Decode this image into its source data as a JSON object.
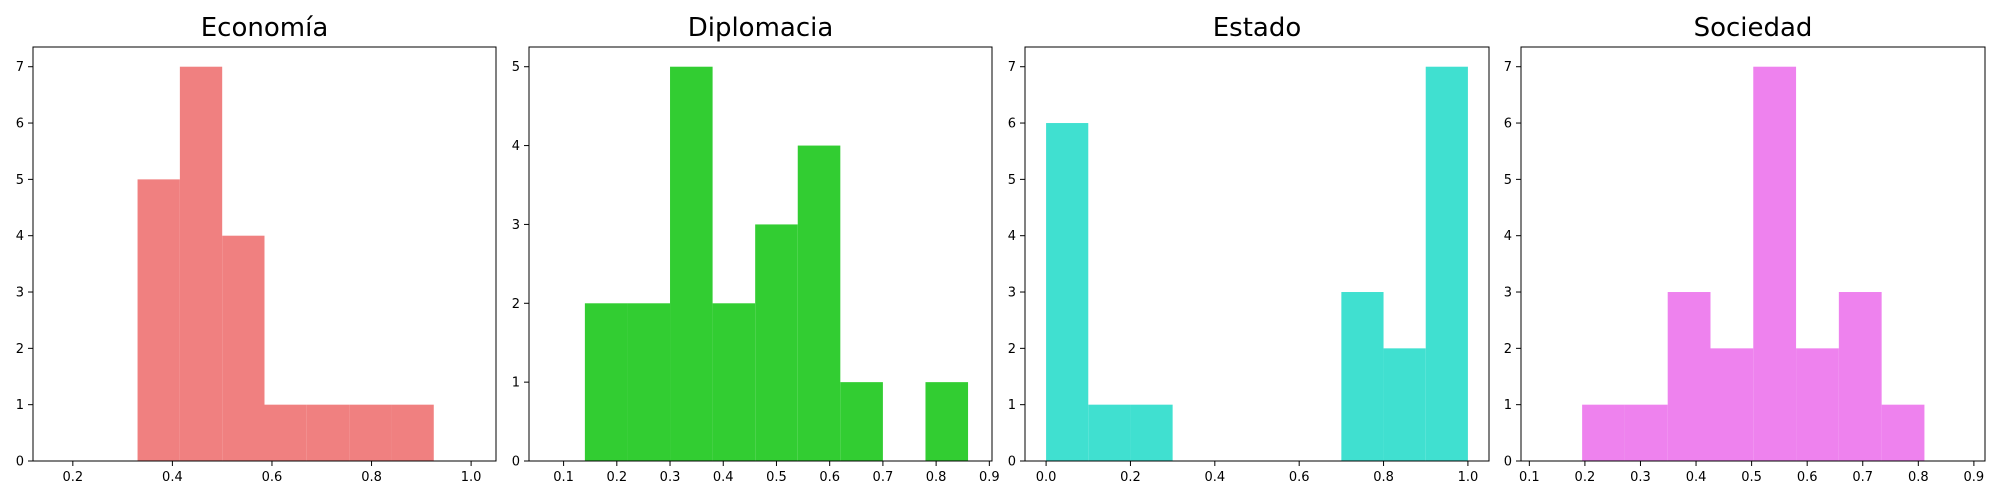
{
  "chart_data": [
    {
      "type": "bar",
      "title": "Economía",
      "color": "#f08080",
      "bins": [
        {
          "x0": 0.33,
          "x1": 0.415,
          "count": 5
        },
        {
          "x0": 0.415,
          "x1": 0.5,
          "count": 7
        },
        {
          "x0": 0.5,
          "x1": 0.585,
          "count": 4
        },
        {
          "x0": 0.585,
          "x1": 0.67,
          "count": 1
        },
        {
          "x0": 0.67,
          "x1": 0.755,
          "count": 1
        },
        {
          "x0": 0.755,
          "x1": 0.84,
          "count": 1
        },
        {
          "x0": 0.84,
          "x1": 0.925,
          "count": 1
        }
      ],
      "xlim": [
        0.12,
        1.05
      ],
      "ylim": [
        0,
        7.35
      ],
      "xticks": [
        0.2,
        0.4,
        0.6,
        0.8,
        1.0
      ],
      "xtick_labels": [
        "0.2",
        "0.4",
        "0.6",
        "0.8",
        "1.0"
      ],
      "yticks": [
        0,
        1,
        2,
        3,
        4,
        5,
        6,
        7
      ],
      "ytick_labels": [
        "0",
        "1",
        "2",
        "3",
        "4",
        "5",
        "6",
        "7"
      ]
    },
    {
      "type": "bar",
      "title": "Diplomacia",
      "color": "#32cd32",
      "bins": [
        {
          "x0": 0.14,
          "x1": 0.22,
          "count": 2
        },
        {
          "x0": 0.22,
          "x1": 0.3,
          "count": 2
        },
        {
          "x0": 0.3,
          "x1": 0.38,
          "count": 5
        },
        {
          "x0": 0.38,
          "x1": 0.46,
          "count": 2
        },
        {
          "x0": 0.46,
          "x1": 0.54,
          "count": 3
        },
        {
          "x0": 0.54,
          "x1": 0.62,
          "count": 4
        },
        {
          "x0": 0.62,
          "x1": 0.7,
          "count": 1
        },
        {
          "x0": 0.7,
          "x1": 0.78,
          "count": 0
        },
        {
          "x0": 0.78,
          "x1": 0.86,
          "count": 1
        }
      ],
      "xlim": [
        0.035,
        0.905
      ],
      "ylim": [
        0,
        5.25
      ],
      "xticks": [
        0.1,
        0.2,
        0.3,
        0.4,
        0.5,
        0.6,
        0.7,
        0.8,
        0.9
      ],
      "xtick_labels": [
        "0.1",
        "0.2",
        "0.3",
        "0.4",
        "0.5",
        "0.6",
        "0.7",
        "0.8",
        "0.9"
      ],
      "yticks": [
        0,
        1,
        2,
        3,
        4,
        5
      ],
      "ytick_labels": [
        "0",
        "1",
        "2",
        "3",
        "4",
        "5"
      ]
    },
    {
      "type": "bar",
      "title": "Estado",
      "color": "#40e0d0",
      "bins": [
        {
          "x0": 0.0,
          "x1": 0.1,
          "count": 6
        },
        {
          "x0": 0.1,
          "x1": 0.2,
          "count": 1
        },
        {
          "x0": 0.2,
          "x1": 0.3,
          "count": 1
        },
        {
          "x0": 0.3,
          "x1": 0.4,
          "count": 0
        },
        {
          "x0": 0.4,
          "x1": 0.5,
          "count": 0
        },
        {
          "x0": 0.5,
          "x1": 0.6,
          "count": 0
        },
        {
          "x0": 0.6,
          "x1": 0.7,
          "count": 0
        },
        {
          "x0": 0.7,
          "x1": 0.8,
          "count": 3
        },
        {
          "x0": 0.8,
          "x1": 0.9,
          "count": 2
        },
        {
          "x0": 0.9,
          "x1": 1.0,
          "count": 7
        }
      ],
      "xlim": [
        -0.05,
        1.05
      ],
      "ylim": [
        0,
        7.35
      ],
      "xticks": [
        0.0,
        0.2,
        0.4,
        0.6,
        0.8,
        1.0
      ],
      "xtick_labels": [
        "0.0",
        "0.2",
        "0.4",
        "0.6",
        "0.8",
        "1.0"
      ],
      "yticks": [
        0,
        1,
        2,
        3,
        4,
        5,
        6,
        7
      ],
      "ytick_labels": [
        "0",
        "1",
        "2",
        "3",
        "4",
        "5",
        "6",
        "7"
      ]
    },
    {
      "type": "bar",
      "title": "Sociedad",
      "color": "#ee82ee",
      "bins": [
        {
          "x0": 0.195,
          "x1": 0.272,
          "count": 1
        },
        {
          "x0": 0.272,
          "x1": 0.349,
          "count": 1
        },
        {
          "x0": 0.349,
          "x1": 0.426,
          "count": 3
        },
        {
          "x0": 0.426,
          "x1": 0.503,
          "count": 2
        },
        {
          "x0": 0.503,
          "x1": 0.58,
          "count": 7
        },
        {
          "x0": 0.58,
          "x1": 0.657,
          "count": 2
        },
        {
          "x0": 0.657,
          "x1": 0.734,
          "count": 3
        },
        {
          "x0": 0.734,
          "x1": 0.811,
          "count": 1
        }
      ],
      "xlim": [
        0.085,
        0.92
      ],
      "ylim": [
        0,
        7.35
      ],
      "xticks": [
        0.1,
        0.2,
        0.3,
        0.4,
        0.5,
        0.6,
        0.7,
        0.8,
        0.9
      ],
      "xtick_labels": [
        "0.1",
        "0.2",
        "0.3",
        "0.4",
        "0.5",
        "0.6",
        "0.7",
        "0.8",
        "0.9"
      ],
      "yticks": [
        0,
        1,
        2,
        3,
        4,
        5,
        6,
        7
      ],
      "ytick_labels": [
        "0",
        "1",
        "2",
        "3",
        "4",
        "5",
        "6",
        "7"
      ]
    }
  ]
}
